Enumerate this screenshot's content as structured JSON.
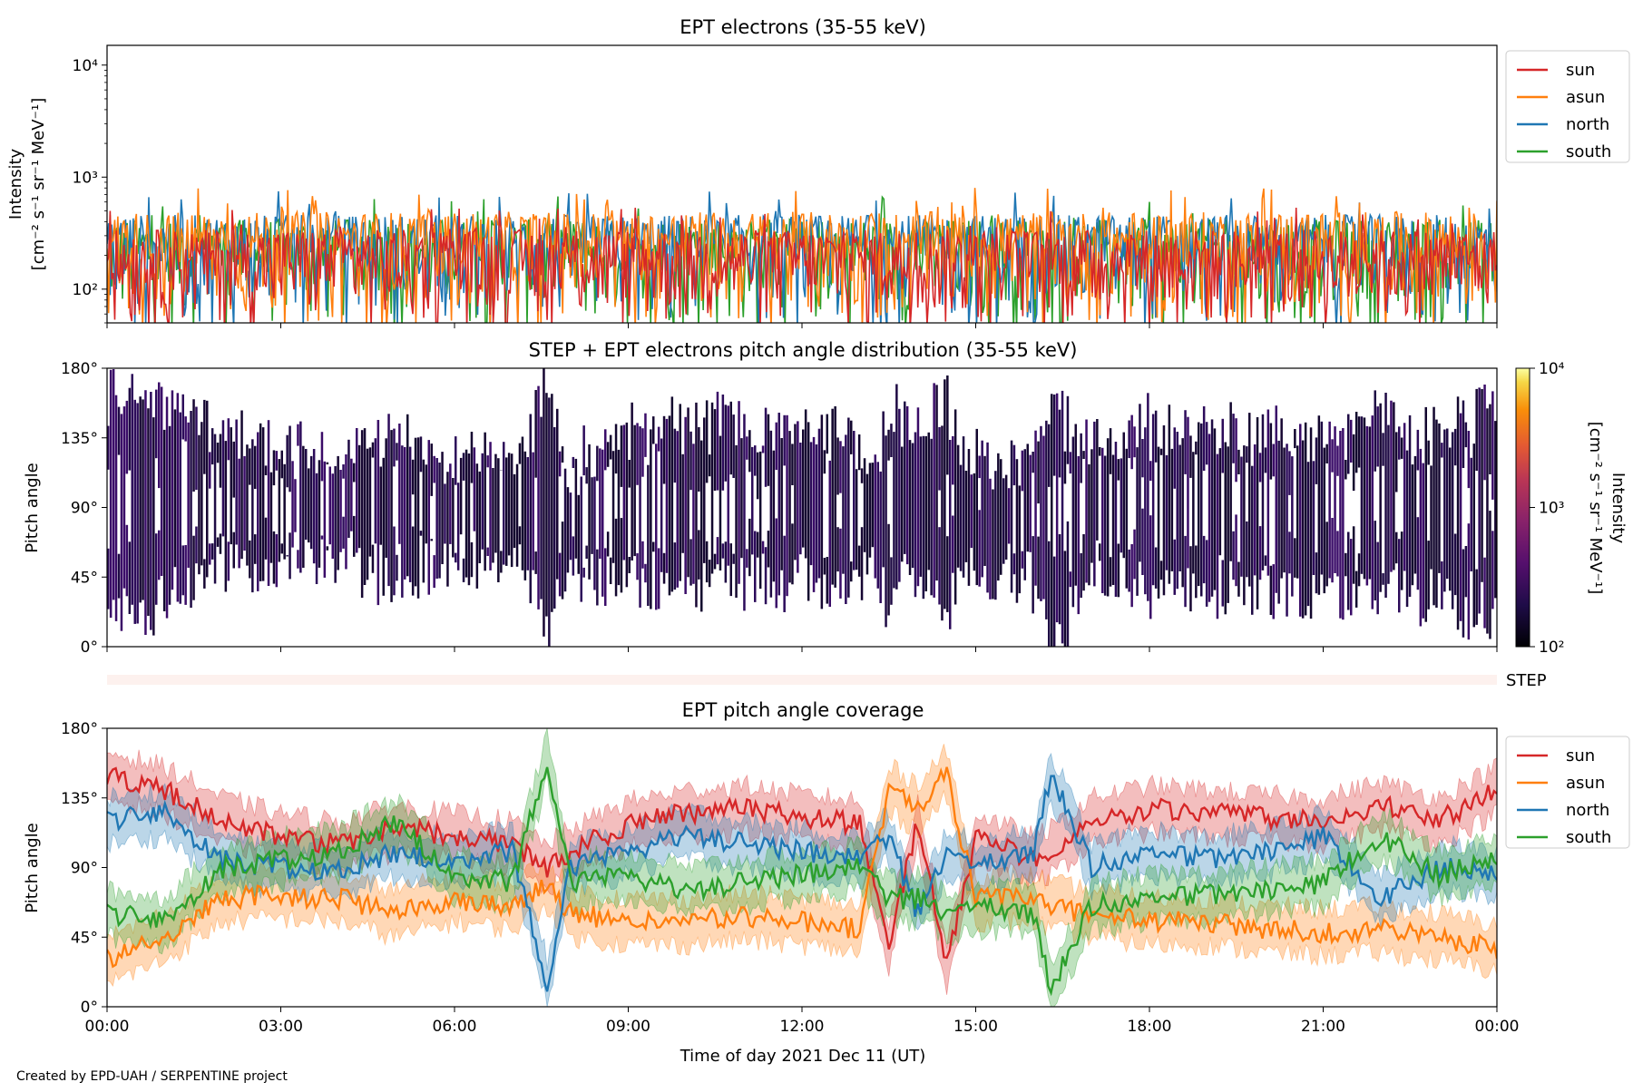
{
  "colors": {
    "sun": "#d62728",
    "asun": "#ff7f0e",
    "north": "#1f77b4",
    "south": "#2ca02c"
  },
  "footer": "Created by EPD-UAH / SERPENTINE project",
  "chart_data": [
    {
      "id": "intensity",
      "type": "line",
      "title": "EPT electrons (35-55 keV)",
      "ylabel_line1": "Intensity",
      "ylabel_line2": "[cm⁻² s⁻¹ sr⁻¹ MeV⁻¹]",
      "yscale": "log",
      "ylim": [
        50,
        15000
      ],
      "ytick_labels": [
        "10²",
        "10³",
        "10⁴"
      ],
      "ytick_values": [
        100,
        1000,
        10000
      ],
      "legend_placement": "outside-top-right",
      "series": [
        {
          "name": "sun",
          "color": "#d62728",
          "typical_peak": 300
        },
        {
          "name": "asun",
          "color": "#ff7f0e",
          "typical_peak": 450
        },
        {
          "name": "north",
          "color": "#1f77b4",
          "typical_peak": 420
        },
        {
          "name": "south",
          "color": "#2ca02c",
          "typical_peak": 380
        }
      ]
    },
    {
      "id": "pad",
      "type": "heatmap",
      "title": "STEP + EPT electrons pitch angle distribution (35-55 keV)",
      "ylabel": "Pitch angle",
      "ylim": [
        0,
        180
      ],
      "ytick_labels": [
        "0°",
        "45°",
        "90°",
        "135°",
        "180°"
      ],
      "colorbar": {
        "label_line1": "Intensity",
        "label_line2": "[cm⁻² s⁻¹ sr⁻¹ MeV⁻¹]",
        "scale": "log",
        "range": [
          100,
          10000
        ],
        "tick_labels": [
          "10²",
          "10³",
          "10⁴"
        ],
        "colormap": "inferno"
      }
    },
    {
      "id": "step",
      "type": "heatmap",
      "label": "STEP"
    },
    {
      "id": "coverage",
      "type": "line",
      "title": "EPT pitch angle coverage",
      "ylabel": "Pitch angle",
      "ylim": [
        0,
        180
      ],
      "ytick_labels": [
        "0°",
        "45°",
        "90°",
        "135°",
        "180°"
      ],
      "xlabel": "Time of day 2021 Dec 11 (UT)",
      "xlim_hours": [
        0,
        24
      ],
      "xtick_labels": [
        "00:00",
        "03:00",
        "06:00",
        "09:00",
        "12:00",
        "15:00",
        "18:00",
        "21:00",
        "00:00"
      ],
      "legend_placement": "outside-top-right",
      "x_hours": [
        0,
        1,
        2,
        3,
        4,
        5,
        6,
        7,
        7.6,
        8,
        9,
        10,
        11,
        12,
        13,
        13.5,
        14,
        14.5,
        15,
        16,
        16.3,
        17,
        18,
        19,
        20,
        21,
        22,
        23,
        24
      ],
      "series": [
        {
          "name": "sun",
          "color": "#d62728",
          "values": [
            150,
            140,
            120,
            110,
            105,
            115,
            110,
            105,
            90,
            100,
            118,
            125,
            128,
            122,
            118,
            40,
            120,
            25,
            110,
            95,
            100,
            120,
            128,
            125,
            122,
            120,
            130,
            120,
            140
          ]
        },
        {
          "name": "asun",
          "color": "#ff7f0e",
          "values": [
            30,
            45,
            70,
            72,
            70,
            60,
            70,
            65,
            80,
            60,
            55,
            55,
            58,
            55,
            50,
            140,
            130,
            150,
            70,
            70,
            65,
            60,
            55,
            55,
            50,
            48,
            50,
            45,
            38
          ]
        },
        {
          "name": "north",
          "color": "#1f77b4",
          "values": [
            120,
            125,
            95,
            90,
            88,
            100,
            95,
            100,
            15,
            90,
            100,
            112,
            105,
            100,
            95,
            110,
            60,
            100,
            90,
            100,
            150,
            90,
            100,
            95,
            100,
            110,
            70,
            90,
            85
          ]
        },
        {
          "name": "south",
          "color": "#2ca02c",
          "values": [
            60,
            55,
            90,
            95,
            100,
            120,
            85,
            80,
            160,
            80,
            85,
            75,
            80,
            85,
            90,
            70,
            70,
            60,
            65,
            60,
            10,
            65,
            70,
            72,
            75,
            80,
            110,
            85,
            95
          ]
        }
      ]
    }
  ]
}
